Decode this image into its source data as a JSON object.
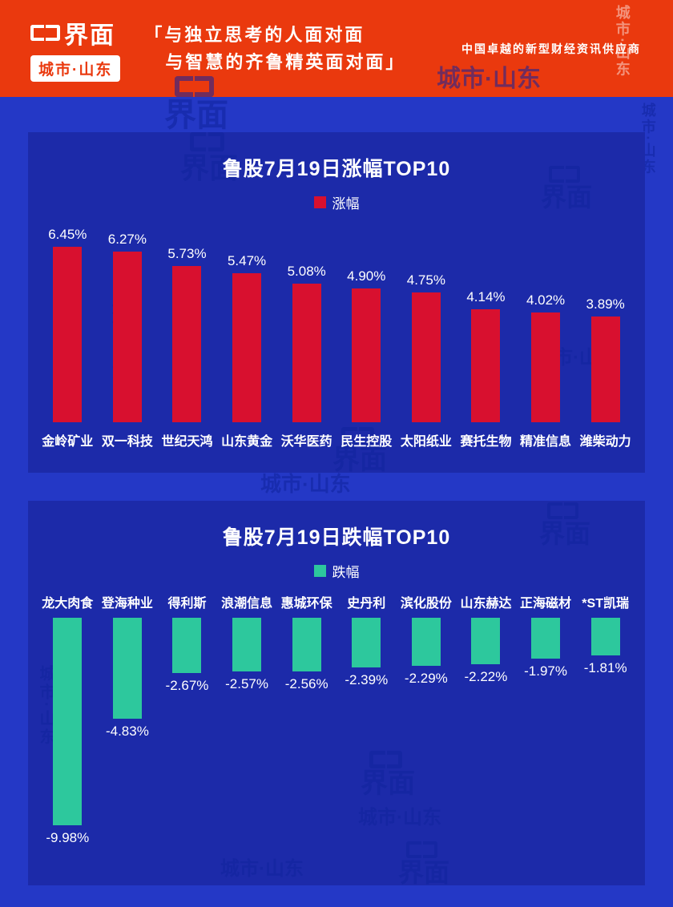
{
  "header": {
    "logo_text": "界面",
    "logo_sub": "城市·山东",
    "quote_line1": "「与独立思考的人面对面",
    "quote_line2": "与智慧的齐鲁精英面对面」",
    "tagline": "中国卓越的新型财经资讯供应商"
  },
  "watermark": {
    "logo": "界面",
    "sub": "城市·山东"
  },
  "colors": {
    "page_bg": "#2438c6",
    "header_bg": "#ea390e",
    "panel_bg": "#1c2aa9",
    "gain_red": "#d8102f",
    "loss_teal": "#2dc89d"
  },
  "chart_data": [
    {
      "type": "bar",
      "title": "鲁股7月19日涨幅TOP10",
      "legend": "涨幅",
      "legend_position": "top",
      "bar_color": "#d8102f",
      "direction": "up",
      "grid": false,
      "ylim": [
        0,
        7
      ],
      "categories": [
        "金岭矿业",
        "双一科技",
        "世纪天鸿",
        "山东黄金",
        "沃华医药",
        "民生控股",
        "太阳纸业",
        "赛托生物",
        "精准信息",
        "潍柴动力"
      ],
      "values": [
        6.45,
        6.27,
        5.73,
        5.47,
        5.08,
        4.9,
        4.75,
        4.14,
        4.02,
        3.89
      ],
      "value_labels": [
        "6.45%",
        "6.27%",
        "5.73%",
        "5.47%",
        "5.08%",
        "4.90%",
        "4.75%",
        "4.14%",
        "4.02%",
        "3.89%"
      ]
    },
    {
      "type": "bar",
      "title": "鲁股7月19日跌幅TOP10",
      "legend": "跌幅",
      "legend_position": "top",
      "bar_color": "#2dc89d",
      "direction": "down",
      "grid": false,
      "ylim": [
        -10,
        0
      ],
      "categories": [
        "龙大肉食",
        "登海种业",
        "得利斯",
        "浪潮信息",
        "惠城环保",
        "史丹利",
        "滨化股份",
        "山东赫达",
        "正海磁材",
        "*ST凯瑞"
      ],
      "values": [
        -9.98,
        -4.83,
        -2.67,
        -2.57,
        -2.56,
        -2.39,
        -2.29,
        -2.22,
        -1.97,
        -1.81
      ],
      "value_labels": [
        "-9.98%",
        "-4.83%",
        "-2.67%",
        "-2.57%",
        "-2.56%",
        "-2.39%",
        "-2.29%",
        "-2.22%",
        "-1.97%",
        "-1.81%"
      ]
    }
  ]
}
